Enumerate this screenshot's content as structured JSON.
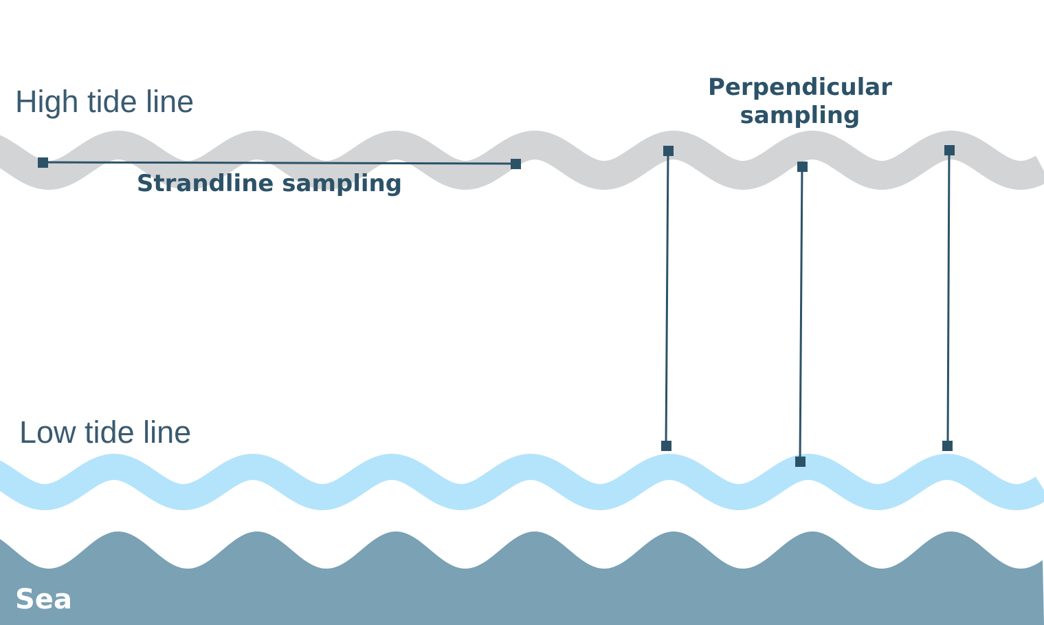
{
  "labels": {
    "high_tide": "High tide line",
    "low_tide": "Low tide line",
    "strandline": "Strandline sampling",
    "perpendicular_line1": "Perpendicular",
    "perpendicular_line2": "sampling",
    "sea": "Sea"
  },
  "colors": {
    "high_tide_band": "#d3d4d5",
    "low_tide_band": "#b3e4fb",
    "sea": "#7aa1b4",
    "transect": "#2c5268",
    "background": "#ffffff"
  }
}
